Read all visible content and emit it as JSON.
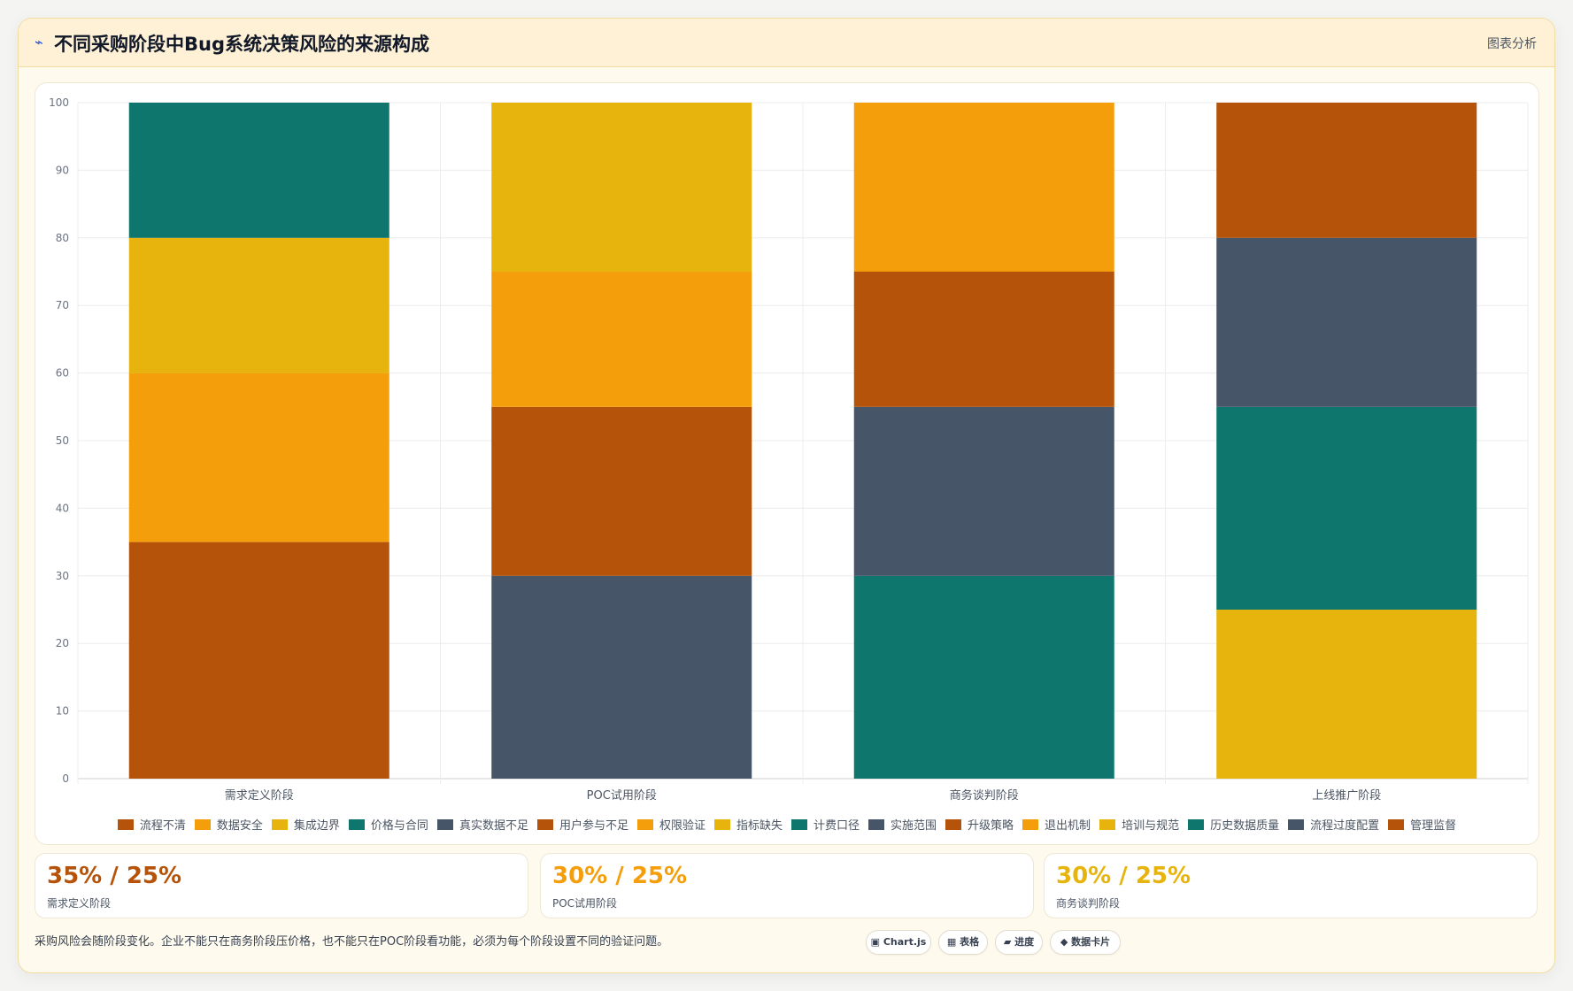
{
  "header": {
    "icon": "pulse-icon",
    "title": "不同采购阶段中Bug系统决策风险的来源构成",
    "link": "图表分析"
  },
  "chart_data": {
    "type": "bar",
    "stacked": true,
    "categories": [
      "需求定义阶段",
      "POC试用阶段",
      "商务谈判阶段",
      "上线推广阶段"
    ],
    "ylim": [
      0,
      100
    ],
    "yticks": [
      0,
      10,
      20,
      30,
      40,
      50,
      60,
      70,
      80,
      90,
      100
    ],
    "grid": true,
    "legend": "bottom",
    "series": [
      {
        "name": "流程不清",
        "color": "#b45309",
        "values": [
          35,
          0,
          0,
          0
        ]
      },
      {
        "name": "数据安全",
        "color": "#f59e0b",
        "values": [
          25,
          0,
          0,
          0
        ]
      },
      {
        "name": "集成边界",
        "color": "#e6b40c",
        "values": [
          20,
          0,
          0,
          0
        ]
      },
      {
        "name": "价格与合同",
        "color": "#0f766e",
        "values": [
          20,
          0,
          0,
          0
        ]
      },
      {
        "name": "真实数据不足",
        "color": "#475569",
        "values": [
          0,
          30,
          0,
          0
        ]
      },
      {
        "name": "用户参与不足",
        "color": "#b45309",
        "values": [
          0,
          25,
          0,
          0
        ]
      },
      {
        "name": "权限验证",
        "color": "#f59e0b",
        "values": [
          0,
          20,
          0,
          0
        ]
      },
      {
        "name": "指标缺失",
        "color": "#e6b40c",
        "values": [
          0,
          25,
          0,
          0
        ]
      },
      {
        "name": "计费口径",
        "color": "#0f766e",
        "values": [
          0,
          0,
          30,
          0
        ]
      },
      {
        "name": "实施范围",
        "color": "#475569",
        "values": [
          0,
          0,
          25,
          0
        ]
      },
      {
        "name": "升级策略",
        "color": "#b45309",
        "values": [
          0,
          0,
          20,
          0
        ]
      },
      {
        "name": "退出机制",
        "color": "#f59e0b",
        "values": [
          0,
          0,
          25,
          0
        ]
      },
      {
        "name": "培训与规范",
        "color": "#e6b40c",
        "values": [
          0,
          0,
          0,
          25
        ]
      },
      {
        "name": "历史数据质量",
        "color": "#0f766e",
        "values": [
          0,
          0,
          0,
          30
        ]
      },
      {
        "name": "流程过度配置",
        "color": "#475569",
        "values": [
          0,
          0,
          0,
          25
        ]
      },
      {
        "name": "管理监督",
        "color": "#b45309",
        "values": [
          0,
          0,
          0,
          20
        ]
      }
    ]
  },
  "stats": [
    {
      "value": "35% / 25%",
      "label": "需求定义阶段",
      "color": "#b45309"
    },
    {
      "value": "30% / 25%",
      "label": "POC试用阶段",
      "color": "#f59e0b"
    },
    {
      "value": "30% / 25%",
      "label": "商务谈判阶段",
      "color": "#e6b40c"
    }
  ],
  "footer": {
    "note": "采购风险会随阶段变化。企业不能只在商务阶段压价格，也不能只在POC阶段看功能，必须为每个阶段设置不同的验证问题。",
    "tags": [
      {
        "label": "▣ Chart.js",
        "icon": "chart-icon"
      },
      {
        "label": "▦ 表格",
        "icon": "table-icon"
      },
      {
        "label": "▰ 进度",
        "icon": "progress-icon"
      },
      {
        "label": "◆ 数据卡片",
        "icon": "card-icon"
      }
    ]
  }
}
